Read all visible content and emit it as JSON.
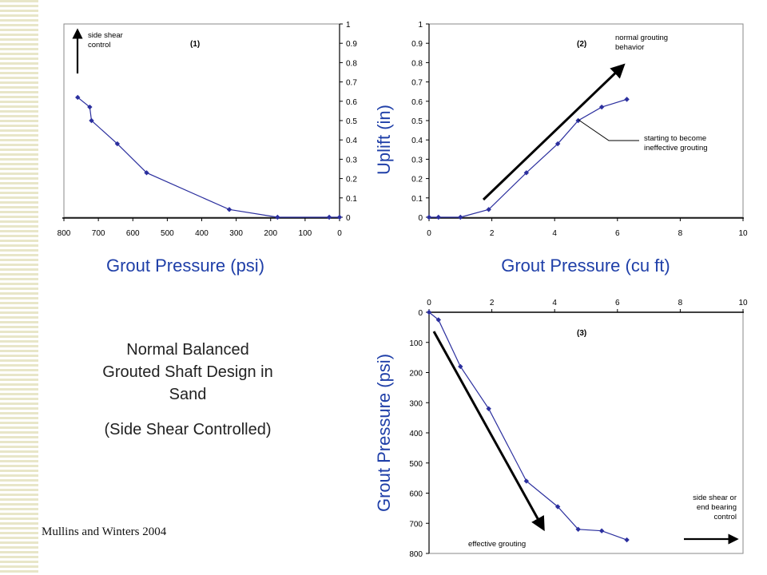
{
  "stripes_color": "#e8e6c8",
  "series_color": "#2b2f9e",
  "axis_label_color": "#1f3fa8",
  "caption": {
    "line1": "Normal Balanced",
    "line2": "Grouted Shaft Design in",
    "line3": "Sand",
    "line4": "(Side Shear Controlled)"
  },
  "credit": "Mullins and Winters 2004",
  "chart_data": [
    {
      "type": "scatter",
      "panel_label": "(1)",
      "xlabel": "Grout Pressure (psi)",
      "ylabel": "",
      "xlim": [
        800,
        0
      ],
      "x_reversed": true,
      "ylim": [
        0,
        1
      ],
      "y_axis_side": "right",
      "xticks": [
        "800",
        "700",
        "600",
        "500",
        "400",
        "300",
        "200",
        "100",
        "0"
      ],
      "yticks": [
        "0",
        "0.1",
        "0.2",
        "0.3",
        "0.4",
        "0.5",
        "0.6",
        "0.7",
        "0.8",
        "0.9",
        "1"
      ],
      "series": [
        {
          "x": [
            760,
            725,
            720,
            645,
            560,
            320,
            180,
            30,
            0
          ],
          "y": [
            0.62,
            0.57,
            0.5,
            0.38,
            0.23,
            0.04,
            0,
            0,
            0
          ]
        }
      ],
      "annotations": [
        {
          "text_lines": [
            "side shear",
            "control"
          ],
          "arrow": "up"
        }
      ]
    },
    {
      "type": "scatter",
      "panel_label": "(2)",
      "xlabel": "Grout Pressure (cu ft)",
      "ylabel": "Uplift (in)",
      "xlim": [
        0,
        10
      ],
      "ylim": [
        0,
        1
      ],
      "xticks": [
        "0",
        "2",
        "4",
        "6",
        "8",
        "10"
      ],
      "yticks": [
        "0",
        "0.1",
        "0.2",
        "0.3",
        "0.4",
        "0.5",
        "0.6",
        "0.7",
        "0.8",
        "0.9",
        "1"
      ],
      "series": [
        {
          "x": [
            0,
            0.3,
            1,
            1.9,
            3.1,
            4.1,
            4.75,
            5.5,
            6.3
          ],
          "y": [
            0,
            0,
            0,
            0.04,
            0.23,
            0.38,
            0.5,
            0.57,
            0.61
          ]
        }
      ],
      "annotations": [
        {
          "text_lines": [
            "normal grouting",
            "behavior"
          ],
          "arrow": "diagonal-up"
        },
        {
          "text_lines": [
            "starting to become",
            "ineffective grouting"
          ],
          "points_to": [
            4.75,
            0.5
          ]
        }
      ]
    },
    {
      "type": "scatter",
      "panel_label": "(3)",
      "xlabel": "",
      "ylabel": "Grout Pressure (psi)",
      "xlim": [
        0,
        10
      ],
      "x_axis_side": "top",
      "ylim": [
        0,
        800
      ],
      "y_inverted": true,
      "xticks": [
        "0",
        "2",
        "4",
        "6",
        "8",
        "10"
      ],
      "yticks": [
        "0",
        "100",
        "200",
        "300",
        "400",
        "500",
        "600",
        "700",
        "800"
      ],
      "series": [
        {
          "x": [
            0,
            0.3,
            1,
            1.9,
            3.1,
            4.1,
            4.75,
            5.5,
            6.3
          ],
          "y": [
            0,
            25,
            180,
            320,
            560,
            645,
            720,
            725,
            755
          ]
        }
      ],
      "annotations": [
        {
          "text_lines": [
            "effective grouting"
          ],
          "arrow": "diagonal-down"
        },
        {
          "text_lines": [
            "side shear or",
            "end bearing",
            "control"
          ],
          "arrow": "right"
        }
      ]
    }
  ]
}
